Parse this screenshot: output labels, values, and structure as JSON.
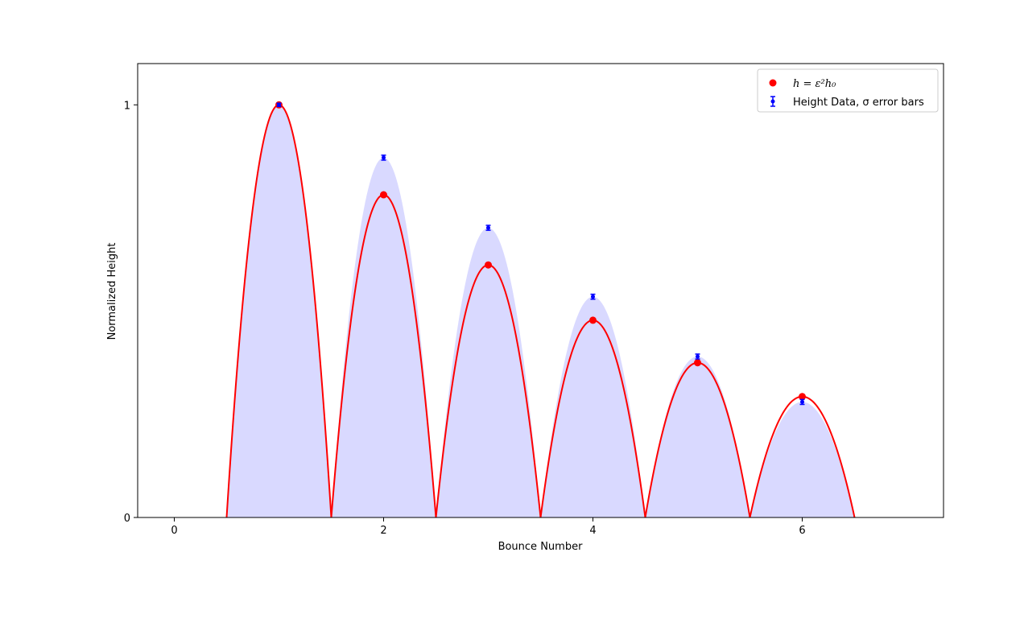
{
  "chart_data": {
    "type": "scatter",
    "xlabel": "Bounce Number",
    "ylabel": "Normalized Height",
    "xlim": [
      -0.35,
      7.35
    ],
    "ylim": [
      0,
      1.1
    ],
    "x_ticks": [
      0,
      2,
      4,
      6
    ],
    "y_ticks": [
      0,
      1
    ],
    "x_tick_labels": [
      "0",
      "2",
      "4",
      "6"
    ],
    "y_tick_labels": [
      "0",
      "1"
    ],
    "grid": false,
    "legend_position": "top-right",
    "series": [
      {
        "name": "h = ε²h₀",
        "kind": "scatter-with-fitted-arcs",
        "color": "#ff0000",
        "x": [
          1,
          2,
          3,
          4,
          5,
          6
        ],
        "y": [
          1.0,
          0.782,
          0.612,
          0.478,
          0.375,
          0.293
        ],
        "arc_x_intervals": [
          [
            0.5,
            1.5
          ],
          [
            1.5,
            2.5
          ],
          [
            2.5,
            3.5
          ],
          [
            3.5,
            4.5
          ],
          [
            4.5,
            5.5
          ],
          [
            5.5,
            6.5
          ]
        ]
      },
      {
        "name": "Height Data, σ error bars",
        "kind": "errorbar-with-filled-arcs",
        "color": "#0000ff",
        "fill_color": "#d9d9ff",
        "x": [
          1,
          2,
          3,
          4,
          5,
          6
        ],
        "y": [
          1.0,
          0.872,
          0.702,
          0.535,
          0.39,
          0.28
        ],
        "y_err": [
          0.004,
          0.006,
          0.006,
          0.006,
          0.006,
          0.006
        ]
      }
    ]
  }
}
